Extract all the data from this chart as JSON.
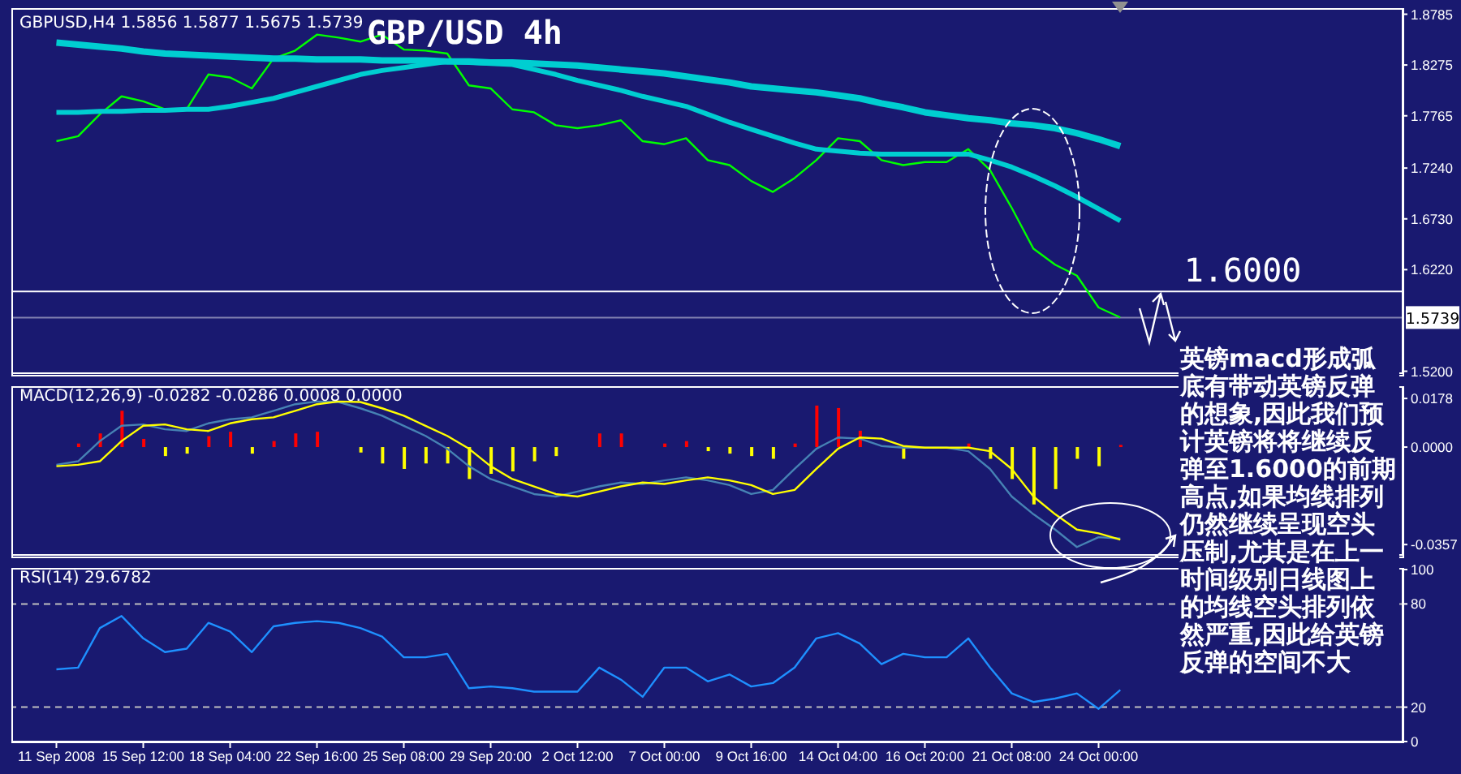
{
  "chart_data": [
    {
      "type": "line",
      "title": "GBP/USD 4h",
      "subtitle": "GBPUSD,H4 1.5856 1.5877 1.5675 1.5739",
      "categories": [
        null,
        null,
        null,
        null,
        null,
        null,
        null,
        null,
        null,
        null,
        null,
        null,
        null,
        null,
        null,
        null,
        null,
        null,
        null,
        null,
        null,
        null,
        null,
        null,
        null,
        null,
        null,
        null,
        null,
        null,
        null,
        null,
        null,
        null,
        null,
        null,
        null,
        null,
        null,
        null,
        null,
        null,
        null,
        null,
        null,
        null,
        null,
        null,
        null,
        null,
        null,
        null,
        null,
        null,
        null,
        null,
        null,
        null,
        null,
        null,
        null,
        null,
        null
      ],
      "series": [
        {
          "color": "#00ff00",
          "values": [
            1.751,
            1.756,
            1.778,
            1.796,
            1.791,
            1.783,
            1.783,
            1.818,
            1.815,
            1.804,
            1.834,
            1.842,
            1.858,
            1.855,
            1.851,
            1.858,
            1.843,
            1.842,
            1.839,
            1.807,
            1.804,
            1.783,
            1.78,
            1.767,
            1.764,
            1.767,
            1.772,
            1.751,
            1.748,
            1.754,
            1.732,
            1.727,
            1.711,
            1.7,
            1.714,
            1.732,
            1.754,
            1.751,
            1.732,
            1.727,
            1.73,
            1.73,
            1.743,
            1.722,
            1.684,
            1.643,
            1.627,
            1.616,
            1.584,
            1.574,
            null,
            null,
            null,
            null,
            null,
            null,
            null,
            null,
            null,
            null,
            null,
            null,
            null
          ]
        },
        {
          "color": "#00ced1",
          "values": [
            1.85,
            1.848,
            1.846,
            1.844,
            1.841,
            1.839,
            1.838,
            1.837,
            1.836,
            1.835,
            1.834,
            1.834,
            1.833,
            1.833,
            1.833,
            1.832,
            1.832,
            1.832,
            1.831,
            1.831,
            1.83,
            1.83,
            1.829,
            1.828,
            1.827,
            1.825,
            1.823,
            1.821,
            1.819,
            1.816,
            1.813,
            1.81,
            1.806,
            1.804,
            1.802,
            1.8,
            1.797,
            1.794,
            1.789,
            1.785,
            1.78,
            1.777,
            1.774,
            1.772,
            1.769,
            1.767,
            1.764,
            1.759,
            1.753,
            1.746,
            null,
            null,
            null,
            null,
            null,
            null,
            null,
            null,
            null,
            null,
            null,
            null,
            null
          ]
        },
        {
          "color": "#00ced1",
          "values": [
            1.78,
            1.78,
            1.781,
            1.781,
            1.782,
            1.782,
            1.783,
            1.783,
            1.786,
            1.79,
            1.794,
            1.8,
            1.806,
            1.812,
            1.818,
            1.822,
            1.825,
            1.828,
            1.831,
            1.83,
            1.829,
            1.828,
            1.823,
            1.818,
            1.812,
            1.807,
            1.802,
            1.796,
            1.791,
            1.786,
            1.778,
            1.77,
            1.763,
            1.756,
            1.749,
            1.743,
            1.741,
            1.739,
            1.738,
            1.738,
            1.738,
            1.738,
            1.738,
            1.732,
            1.725,
            1.716,
            1.706,
            1.695,
            1.683,
            1.671,
            null,
            null,
            null,
            null,
            null,
            null,
            null,
            null,
            null,
            null,
            null,
            null,
            null
          ]
        }
      ],
      "ylim": [
        1.518,
        1.883
      ],
      "yticks": [
        {
          "value": 1.52,
          "label": "1.5200"
        },
        {
          "value": 1.622,
          "label": "1.6220"
        },
        {
          "value": 1.673,
          "label": "1.6730"
        },
        {
          "value": 1.724,
          "label": "1.7240"
        },
        1.7765,
        1.8275,
        1.8785
      ],
      "ref_lines": [
        {
          "axis": "y",
          "value": 1.6,
          "label": "1.6000",
          "color": "#ffffff"
        },
        {
          "axis": "y",
          "value": 1.5739,
          "label": "1.5739",
          "color": "#8080b0"
        }
      ],
      "tick_labels": "y",
      "annotations": [
        "英镑macd形成弧底有带动英镑反弹的想象,因此我们预计英镑将将继续反弹至1.6000的前期高点,如果均线排列仍然继续呈现空头压制,尤其是在上一时间级别日线图上的均线空头排列依然严重,因此给英镑反弹的空间不大"
      ]
    },
    {
      "type": "bar",
      "title": "MACD(12,26,9) -0.0282 -0.0286 0.0008 0.0000",
      "categories": [
        null,
        null,
        null,
        null,
        null,
        null,
        null,
        null,
        null,
        null,
        null,
        null,
        null,
        null,
        null,
        null,
        null,
        null,
        null,
        null,
        null,
        null,
        null,
        null,
        null,
        null,
        null,
        null,
        null,
        null,
        null,
        null,
        null,
        null,
        null,
        null,
        null,
        null,
        null,
        null,
        null,
        null,
        null,
        null,
        null,
        null,
        null,
        null,
        null,
        null,
        null,
        null,
        null,
        null,
        null,
        null,
        null,
        null,
        null,
        null,
        null,
        null,
        null
      ],
      "series": [
        {
          "type": "bar",
          "values": [
            0,
            0.0013,
            0.005,
            0.0133,
            0.003,
            -0.0033,
            -0.0024,
            0.004,
            0.0056,
            -0.0024,
            0.0022,
            0.005,
            0.0056,
            0,
            -0.002,
            -0.006,
            -0.008,
            -0.006,
            -0.006,
            -0.0117,
            -0.0098,
            -0.0089,
            -0.0052,
            -0.0033,
            0,
            0.005,
            0.005,
            0,
            0.0013,
            0.0022,
            -0.0015,
            -0.0024,
            -0.0033,
            -0.0043,
            0.0013,
            0.0152,
            0.0143,
            0.006,
            0,
            -0.0043,
            0,
            0,
            0.0013,
            -0.0043,
            -0.0117,
            -0.021,
            -0.0154,
            -0.0043,
            -0.007,
            0.0008,
            null,
            null,
            null,
            null,
            null,
            null,
            null,
            null,
            null,
            null,
            null,
            null,
            null
          ],
          "colors": [
            "#ffff00",
            "#ff0000",
            "#ff0000",
            "#ff0000",
            "#ff0000",
            "#ffff00",
            "#ffff00",
            "#ff0000",
            "#ff0000",
            "#ffff00",
            "#ff0000",
            "#ff0000",
            "#ff0000",
            "#ffff00",
            "#ffff00",
            "#ffff00",
            "#ffff00",
            "#ffff00",
            "#ffff00",
            "#ffff00",
            "#ffff00",
            "#ffff00",
            "#ffff00",
            "#ffff00",
            "#ffff00",
            "#ff0000",
            "#ff0000",
            "#ffff00",
            "#ff0000",
            "#ff0000",
            "#ffff00",
            "#ffff00",
            "#ffff00",
            "#ffff00",
            "#ff0000",
            "#ff0000",
            "#ff0000",
            "#ff0000",
            "#ffff00",
            "#ffff00",
            "#ffff00",
            "#ffff00",
            "#ff0000",
            "#ffff00",
            "#ffff00",
            "#ffff00",
            "#ffff00",
            "#ffff00",
            "#ffff00",
            "#ff0000",
            null,
            null,
            null,
            null,
            null,
            null,
            null,
            null,
            null,
            null,
            null,
            null,
            null
          ]
        },
        {
          "type": "line",
          "color": "#4682b4",
          "values": [
            -0.0065,
            -0.0052,
            0.0022,
            0.0078,
            0.0083,
            0.0065,
            0.0059,
            0.0087,
            0.0102,
            0.0109,
            0.0133,
            0.0157,
            0.0167,
            0.0165,
            0.0142,
            0.0115,
            0.0078,
            0.0041,
            -0.0006,
            -0.007,
            -0.0117,
            -0.0144,
            -0.0172,
            -0.0181,
            -0.0163,
            -0.0144,
            -0.013,
            -0.0135,
            -0.0122,
            -0.0111,
            -0.0122,
            -0.0139,
            -0.0172,
            -0.0157,
            -0.008,
            -0.0006,
            0.0035,
            0.0031,
            0.0004,
            -0.0002,
            -0.0002,
            -0.0002,
            -0.0015,
            -0.008,
            -0.0181,
            -0.0246,
            -0.0302,
            -0.0366,
            -0.033,
            -0.0335,
            null,
            null,
            null,
            null,
            null,
            null,
            null,
            null,
            null,
            null,
            null,
            null,
            null
          ]
        },
        {
          "type": "line",
          "color": "#ffff00",
          "values": [
            -0.007,
            -0.0065,
            -0.0052,
            0.0022,
            0.0078,
            0.0083,
            0.0065,
            0.0059,
            0.0087,
            0.0102,
            0.0109,
            0.0133,
            0.0157,
            0.0167,
            0.0165,
            0.0142,
            0.0115,
            0.0078,
            0.0041,
            -0.0006,
            -0.007,
            -0.0117,
            -0.0144,
            -0.0172,
            -0.0181,
            -0.0163,
            -0.0144,
            -0.013,
            -0.0135,
            -0.0122,
            -0.0111,
            -0.0122,
            -0.0139,
            -0.0172,
            -0.0157,
            -0.008,
            -0.0006,
            0.0035,
            0.0031,
            0.0004,
            -0.0002,
            -0.0002,
            -0.0002,
            -0.0015,
            -0.008,
            -0.0181,
            -0.0246,
            -0.0302,
            -0.0316,
            -0.0339,
            null,
            null,
            null,
            null,
            null,
            null,
            null,
            null,
            null,
            null,
            null,
            null,
            null
          ]
        }
      ],
      "ylim": [
        -0.0395,
        0.0217
      ],
      "yticks": [
        -0.0357,
        {
          "value": 0,
          "label": "0.0000"
        },
        0.0178
      ],
      "tick_labels": "y"
    },
    {
      "type": "line",
      "title": "RSI(14) 29.6782",
      "categories": [
        "11 Sep 2008",
        null,
        null,
        null,
        "15 Sep 12:00",
        null,
        null,
        null,
        "18 Sep 04:00",
        null,
        null,
        null,
        "22 Sep 16:00",
        null,
        null,
        null,
        "25 Sep 08:00",
        null,
        null,
        null,
        "29 Sep 20:00",
        null,
        null,
        null,
        "2 Oct 12:00",
        null,
        null,
        null,
        "7 Oct 00:00",
        null,
        null,
        null,
        "9 Oct 16:00",
        null,
        null,
        null,
        "14 Oct 04:00",
        null,
        null,
        null,
        "16 Oct 20:00",
        null,
        null,
        null,
        "21 Oct 08:00",
        null,
        null,
        null,
        "24 Oct 00:00",
        null,
        null,
        null,
        null,
        null,
        null,
        null,
        null,
        null,
        null,
        null,
        null,
        null,
        null
      ],
      "series": [
        {
          "color": "#1e90ff",
          "values": [
            42,
            43,
            66,
            73,
            60,
            52,
            54,
            69,
            64,
            52,
            67,
            69,
            70,
            69,
            66,
            61,
            49,
            49,
            51,
            31,
            32,
            31,
            29,
            29,
            29,
            43,
            36,
            26,
            43,
            43,
            35,
            39,
            32,
            34,
            43,
            60,
            63,
            57,
            45,
            51,
            49,
            49,
            60,
            43,
            28,
            23,
            25,
            28,
            19,
            30,
            null,
            null,
            null,
            null,
            null,
            null,
            null,
            null,
            null,
            null,
            null,
            null,
            null
          ]
        }
      ],
      "ylim": [
        0,
        100
      ],
      "yticks": [
        0,
        20,
        80,
        100
      ],
      "ref_lines": [
        {
          "axis": "y",
          "value": 80,
          "color": "#c0c0c0",
          "line_style": "dashed"
        },
        {
          "axis": "y",
          "value": 20,
          "color": "#c0c0c0",
          "line_style": "dashed"
        }
      ]
    }
  ]
}
